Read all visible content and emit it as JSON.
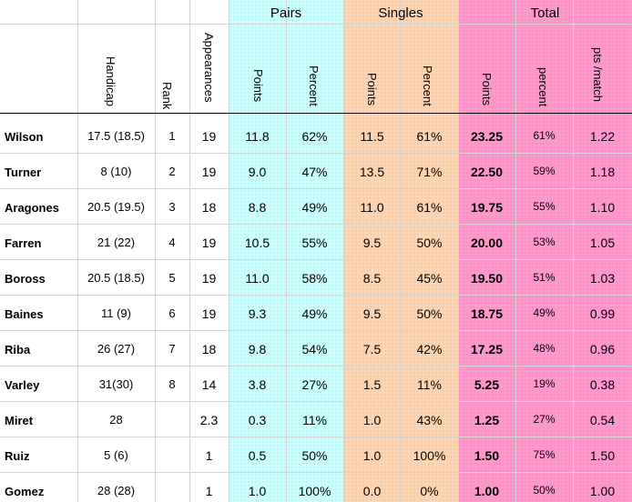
{
  "groups": {
    "pairs": "Pairs",
    "singles": "Singles",
    "total": "Total"
  },
  "headers": {
    "handicap": "Handicap",
    "rank": "Rank",
    "appearances": "Appearances",
    "pairs_points": "Points",
    "pairs_percent": "Percent",
    "singles_points": "Points",
    "singles_percent": "Percent",
    "total_points": "Points",
    "total_percent": "percent",
    "pts_match": "pts /match"
  },
  "rows": [
    {
      "name": "Wilson",
      "handicap": "17.5 (18.5)",
      "rank": "1",
      "appearances": "19",
      "pairs_points": "11.8",
      "pairs_percent": "62%",
      "singles_points": "11.5",
      "singles_percent": "61%",
      "total_points": "23.25",
      "total_percent": "61%",
      "pts_match": "1.22"
    },
    {
      "name": "Turner",
      "handicap": "8 (10)",
      "rank": "2",
      "appearances": "19",
      "pairs_points": "9.0",
      "pairs_percent": "47%",
      "singles_points": "13.5",
      "singles_percent": "71%",
      "total_points": "22.50",
      "total_percent": "59%",
      "pts_match": "1.18"
    },
    {
      "name": "Aragones",
      "handicap": "20.5 (19.5)",
      "rank": "3",
      "appearances": "18",
      "pairs_points": "8.8",
      "pairs_percent": "49%",
      "singles_points": "11.0",
      "singles_percent": "61%",
      "total_points": "19.75",
      "total_percent": "55%",
      "pts_match": "1.10"
    },
    {
      "name": "Farren",
      "handicap": "21 (22)",
      "rank": "4",
      "appearances": "19",
      "pairs_points": "10.5",
      "pairs_percent": "55%",
      "singles_points": "9.5",
      "singles_percent": "50%",
      "total_points": "20.00",
      "total_percent": "53%",
      "pts_match": "1.05"
    },
    {
      "name": "Boross",
      "handicap": "20.5 (18.5)",
      "rank": "5",
      "appearances": "19",
      "pairs_points": "11.0",
      "pairs_percent": "58%",
      "singles_points": "8.5",
      "singles_percent": "45%",
      "total_points": "19.50",
      "total_percent": "51%",
      "pts_match": "1.03"
    },
    {
      "name": "Baines",
      "handicap": "11 (9)",
      "rank": "6",
      "appearances": "19",
      "pairs_points": "9.3",
      "pairs_percent": "49%",
      "singles_points": "9.5",
      "singles_percent": "50%",
      "total_points": "18.75",
      "total_percent": "49%",
      "pts_match": "0.99"
    },
    {
      "name": "Riba",
      "handicap": "26 (27)",
      "rank": "7",
      "appearances": "18",
      "pairs_points": "9.8",
      "pairs_percent": "54%",
      "singles_points": "7.5",
      "singles_percent": "42%",
      "total_points": "17.25",
      "total_percent": "48%",
      "pts_match": "0.96"
    },
    {
      "name": "Varley",
      "handicap": "31(30)",
      "rank": "8",
      "appearances": "14",
      "pairs_points": "3.8",
      "pairs_percent": "27%",
      "singles_points": "1.5",
      "singles_percent": "11%",
      "total_points": "5.25",
      "total_percent": "19%",
      "pts_match": "0.38"
    },
    {
      "name": "Miret",
      "handicap": "28",
      "rank": "",
      "appearances": "2.3",
      "pairs_points": "0.3",
      "pairs_percent": "11%",
      "singles_points": "1.0",
      "singles_percent": "43%",
      "total_points": "1.25",
      "total_percent": "27%",
      "pts_match": "0.54"
    },
    {
      "name": "Ruiz",
      "handicap": "5 (6)",
      "rank": "",
      "appearances": "1",
      "pairs_points": "0.5",
      "pairs_percent": "50%",
      "singles_points": "1.0",
      "singles_percent": "100%",
      "total_points": "1.50",
      "total_percent": "75%",
      "pts_match": "1.50"
    },
    {
      "name": "Gomez",
      "handicap": "28 (28)",
      "rank": "",
      "appearances": "1",
      "pairs_points": "1.0",
      "pairs_percent": "100%",
      "singles_points": "0.0",
      "singles_percent": "0%",
      "total_points": "1.00",
      "total_percent": "50%",
      "pts_match": "1.00"
    }
  ]
}
